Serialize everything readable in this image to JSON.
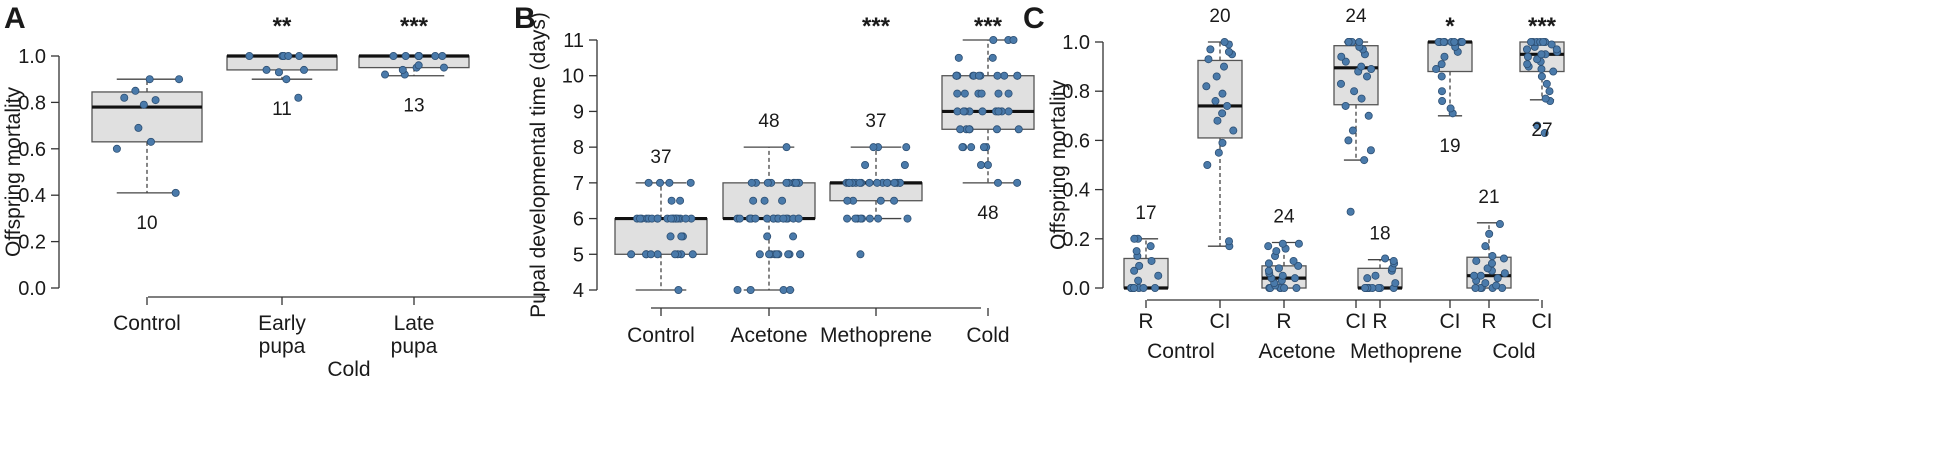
{
  "chart_data": [
    {
      "panel": "A",
      "type": "box",
      "ylabel": "Offspring mortality",
      "ylim": [
        0,
        1.0
      ],
      "yticks": [
        "0.0",
        "0.2",
        "0.4",
        "0.6",
        "0.8",
        "1.0"
      ],
      "group_label": "Cold",
      "categories": [
        {
          "label": [
            "Control"
          ],
          "q1": 0.63,
          "median": 0.78,
          "q3": 0.845,
          "lo": 0.41,
          "hi": 0.9,
          "n": "10",
          "n_pos": "below",
          "sig": "",
          "points": [
            0.41,
            0.6,
            0.63,
            0.69,
            0.79,
            0.81,
            0.82,
            0.85,
            0.9,
            0.9
          ]
        },
        {
          "label": [
            "Early",
            "pupa"
          ],
          "q1": 0.94,
          "median": 1.0,
          "q3": 1.0,
          "lo": 0.9,
          "hi": 1.0,
          "n": "11",
          "n_pos": "below",
          "sig": "**",
          "points": [
            0.82,
            0.9,
            0.93,
            0.94,
            0.94,
            1.0,
            1.0,
            1.0,
            1.0,
            1.0,
            1.0
          ]
        },
        {
          "label": [
            "Late",
            "pupa"
          ],
          "q1": 0.95,
          "median": 1.0,
          "q3": 1.0,
          "lo": 0.915,
          "hi": 1.0,
          "n": "13",
          "n_pos": "below",
          "sig": "***",
          "points": [
            0.92,
            0.92,
            0.94,
            0.95,
            0.95,
            0.96,
            1.0,
            1.0,
            1.0,
            1.0,
            1.0,
            1.0,
            1.0
          ]
        }
      ]
    },
    {
      "panel": "B",
      "type": "box",
      "ylabel": "Pupal developmental time (days)",
      "ylim": [
        4,
        11
      ],
      "yticks": [
        "4",
        "5",
        "6",
        "7",
        "8",
        "9",
        "10",
        "11"
      ],
      "categories": [
        {
          "label": [
            "Control"
          ],
          "q1": 5,
          "median": 6,
          "q3": 6,
          "lo": 4,
          "hi": 7,
          "n": "37",
          "n_pos": "above",
          "sig": "",
          "points": [
            4,
            5,
            5,
            5,
            5,
            5,
            5,
            5,
            5,
            5,
            5.5,
            5.5,
            5.5,
            6,
            6,
            6,
            6,
            6,
            6,
            6,
            6,
            6,
            6,
            6,
            6,
            6,
            6,
            6,
            6,
            6,
            6,
            6.5,
            6.5,
            7,
            7,
            7,
            7
          ]
        },
        {
          "label": [
            "Acetone"
          ],
          "q1": 6,
          "median": 6,
          "q3": 7,
          "lo": 4,
          "hi": 8,
          "n": "48",
          "n_pos": "above",
          "sig": "",
          "points": [
            4,
            4,
            4,
            4,
            5,
            5,
            5,
            5,
            5,
            5,
            5,
            5,
            5,
            5,
            5.5,
            5.5,
            6,
            6,
            6,
            6,
            6,
            6,
            6,
            6,
            6,
            6,
            6,
            6,
            6,
            6,
            6,
            6,
            6,
            6.5,
            6.5,
            6.5,
            7,
            7,
            7,
            7,
            7,
            7,
            7,
            7,
            7,
            7,
            7,
            8
          ]
        },
        {
          "label": [
            "Methoprene"
          ],
          "q1": 6.5,
          "median": 7,
          "q3": 7,
          "lo": 6,
          "hi": 8,
          "n": "37",
          "n_pos": "above",
          "sig": "***",
          "points": [
            5,
            6,
            6,
            6,
            6,
            6,
            6,
            6,
            6,
            6.5,
            6.5,
            6.5,
            6.5,
            7,
            7,
            7,
            7,
            7,
            7,
            7,
            7,
            7,
            7,
            7,
            7,
            7,
            7,
            7,
            7,
            7,
            7,
            7,
            7.5,
            7.5,
            8,
            8,
            8
          ]
        },
        {
          "label": [
            "Cold"
          ],
          "q1": 8.5,
          "median": 9,
          "q3": 10,
          "lo": 7,
          "hi": 11,
          "n": "48",
          "n_pos": "below",
          "sig": "***",
          "points": [
            7,
            7,
            7.5,
            7.5,
            8,
            8,
            8,
            8,
            8,
            8.5,
            8.5,
            8.5,
            8.5,
            8.5,
            8.5,
            9,
            9,
            9,
            9,
            9,
            9,
            9,
            9,
            9,
            9,
            9.5,
            9.5,
            9.5,
            9.5,
            9.5,
            9.5,
            10,
            10,
            10,
            10,
            10,
            10,
            10,
            10,
            10,
            10,
            10,
            10,
            10.5,
            10.5,
            11,
            11,
            11
          ]
        }
      ]
    },
    {
      "panel": "C",
      "type": "box",
      "ylabel": "Offspring mortality",
      "ylim": [
        0,
        1.0
      ],
      "yticks": [
        "0.0",
        "0.2",
        "0.4",
        "0.6",
        "0.8",
        "1.0"
      ],
      "groups": [
        "Control",
        "Acetone",
        "Methoprene",
        "Cold"
      ],
      "categories": [
        {
          "label": [
            "R"
          ],
          "group": 0,
          "q1": 0,
          "median": 0,
          "q3": 0.12,
          "lo": 0,
          "hi": 0.2,
          "n": "17",
          "n_pos": "above",
          "sig": "",
          "points": [
            0,
            0,
            0,
            0,
            0,
            0,
            0,
            0.03,
            0.05,
            0.07,
            0.09,
            0.11,
            0.13,
            0.15,
            0.17,
            0.2,
            0.2
          ]
        },
        {
          "label": [
            "CI"
          ],
          "group": 0,
          "q1": 0.61,
          "median": 0.74,
          "q3": 0.925,
          "lo": 0.17,
          "hi": 1.0,
          "n": "20",
          "n_pos": "above",
          "sig": "",
          "points": [
            0.17,
            0.19,
            0.5,
            0.55,
            0.59,
            0.64,
            0.68,
            0.71,
            0.74,
            0.76,
            0.79,
            0.82,
            0.86,
            0.9,
            0.93,
            0.95,
            0.96,
            0.97,
            0.99,
            1.0
          ]
        },
        {
          "label": [
            "R"
          ],
          "group": 1,
          "q1": 0,
          "median": 0.04,
          "q3": 0.09,
          "lo": 0,
          "hi": 0.185,
          "n": "24",
          "n_pos": "above",
          "sig": "",
          "points": [
            0,
            0,
            0,
            0,
            0,
            0,
            0.01,
            0.02,
            0.03,
            0.04,
            0.04,
            0.05,
            0.06,
            0.07,
            0.08,
            0.09,
            0.1,
            0.11,
            0.13,
            0.15,
            0.16,
            0.17,
            0.18,
            0.18
          ]
        },
        {
          "label": [
            "CI"
          ],
          "group": 1,
          "q1": 0.745,
          "median": 0.895,
          "q3": 0.985,
          "lo": 0.52,
          "hi": 1.0,
          "n": "24",
          "n_pos": "above",
          "sig": "",
          "points": [
            0.31,
            0.52,
            0.56,
            0.6,
            0.64,
            0.7,
            0.74,
            0.77,
            0.8,
            0.83,
            0.86,
            0.88,
            0.89,
            0.9,
            0.92,
            0.94,
            0.95,
            0.97,
            0.98,
            1.0,
            1.0,
            1.0,
            1.0,
            1.0
          ]
        },
        {
          "label": [
            "R"
          ],
          "group": 2,
          "q1": 0,
          "median": 0,
          "q3": 0.08,
          "lo": 0,
          "hi": 0.115,
          "n": "18",
          "n_pos": "above",
          "sig": "",
          "points": [
            0,
            0,
            0,
            0,
            0,
            0,
            0,
            0,
            0,
            0,
            0.02,
            0.04,
            0.05,
            0.07,
            0.08,
            0.1,
            0.11,
            0.12
          ]
        },
        {
          "label": [
            "CI"
          ],
          "group": 2,
          "q1": 0.88,
          "median": 1.0,
          "q3": 1.0,
          "lo": 0.7,
          "hi": 1.0,
          "n": "19",
          "n_pos": "below",
          "sig": "*",
          "points": [
            0.71,
            0.73,
            0.76,
            0.8,
            0.86,
            0.89,
            0.91,
            0.94,
            0.96,
            0.98,
            1.0,
            1.0,
            1.0,
            1.0,
            1.0,
            1.0,
            1.0,
            1.0,
            1.0
          ]
        },
        {
          "label": [
            "R"
          ],
          "group": 3,
          "q1": 0,
          "median": 0.05,
          "q3": 0.125,
          "lo": 0,
          "hi": 0.265,
          "n": "21",
          "n_pos": "above",
          "sig": "",
          "points": [
            0,
            0,
            0,
            0,
            0,
            0.01,
            0.02,
            0.03,
            0.04,
            0.05,
            0.05,
            0.06,
            0.07,
            0.08,
            0.1,
            0.11,
            0.12,
            0.13,
            0.17,
            0.22,
            0.26
          ]
        },
        {
          "label": [
            "CI"
          ],
          "group": 3,
          "q1": 0.88,
          "median": 0.95,
          "q3": 1.0,
          "lo": 0.765,
          "hi": 1.0,
          "n": "27",
          "n_pos": "below",
          "sig": "***",
          "points": [
            0.63,
            0.66,
            0.76,
            0.77,
            0.8,
            0.83,
            0.86,
            0.88,
            0.89,
            0.9,
            0.91,
            0.92,
            0.93,
            0.94,
            0.95,
            0.95,
            0.96,
            0.97,
            0.97,
            0.98,
            0.99,
            1.0,
            1.0,
            1.0,
            1.0,
            1.0,
            1.0
          ]
        }
      ]
    }
  ]
}
